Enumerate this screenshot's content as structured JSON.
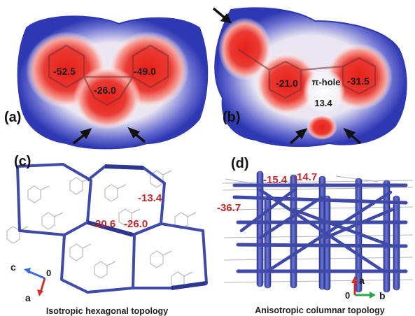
{
  "panels": {
    "a": {
      "label": "(a)",
      "values": [
        "-52.5",
        "-49.0",
        "-26.0"
      ]
    },
    "b": {
      "label": "(b)",
      "values": [
        "-21.0",
        "-31.5",
        "13.4"
      ],
      "pi_hole": "π-hole"
    },
    "c": {
      "label": "(c)",
      "energies": [
        "-13.4",
        "-20.6",
        "-26.0"
      ],
      "axes": {
        "c": "c",
        "origin": "0",
        "a": "a"
      },
      "caption": "Isotropic hexagonal topology"
    },
    "d": {
      "label": "(d)",
      "energies": [
        "-15.4",
        "-14.7",
        "-36.7"
      ],
      "axes": {
        "a": "a",
        "origin": "0",
        "b": "b"
      },
      "caption": "Anisotropic columnar topology"
    }
  },
  "colors": {
    "surface_blue": "#3a43b8",
    "surface_red": "#e0241f",
    "framework": "#3f4aa8",
    "energy_text": "#c0282d"
  }
}
